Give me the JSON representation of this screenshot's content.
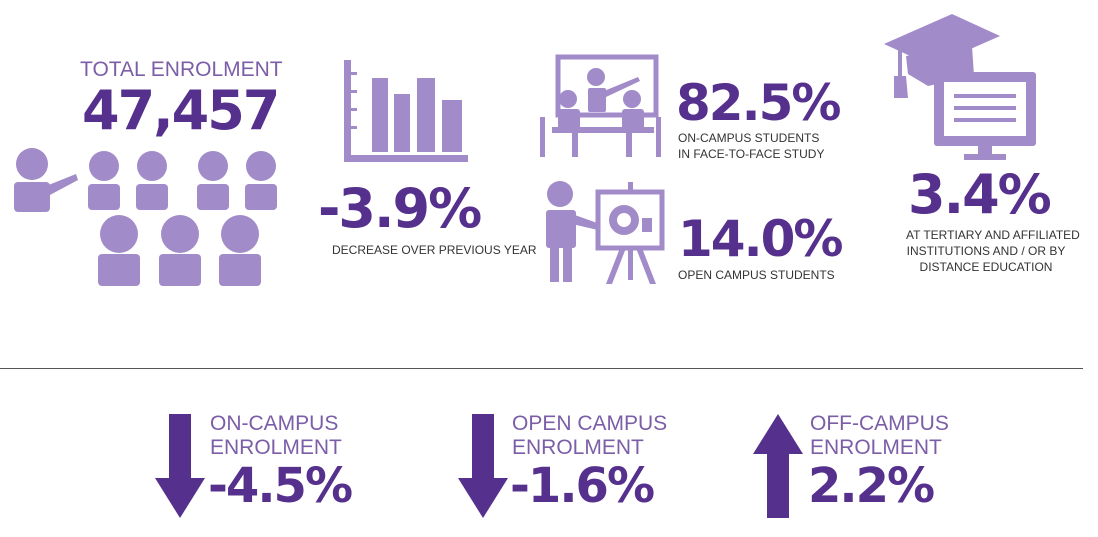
{
  "colors": {
    "dark": "#55308d",
    "mid": "#7b5ea7",
    "light": "#a18bc9",
    "rule": "#555555"
  },
  "total": {
    "label": "TOTAL ENROLMENT",
    "value": "47,457",
    "icon": "people-group-icon"
  },
  "decrease": {
    "value": "-3.9%",
    "caption": "DECREASE OVER PREVIOUS YEAR",
    "icon": "bar-chart-icon"
  },
  "on_campus": {
    "value": "82.5%",
    "caption_line1": "ON-CAMPUS STUDENTS",
    "caption_line2": "IN FACE-TO-FACE STUDY",
    "icon": "classroom-icon"
  },
  "open_campus": {
    "value": "14.0%",
    "caption": "OPEN CAMPUS STUDENTS",
    "icon": "presenter-icon"
  },
  "tertiary": {
    "value": "3.4%",
    "caption_line1": "AT TERTIARY AND AFFILIATED",
    "caption_line2": "INSTITUTIONS AND / OR BY",
    "caption_line3": "DISTANCE EDUCATION",
    "icon": "graduation-monitor-icon"
  },
  "changes": [
    {
      "line1": "ON-CAMPUS",
      "line2": "ENROLMENT",
      "value": "-4.5%",
      "direction": "down",
      "icon": "arrow-down-icon"
    },
    {
      "line1": "OPEN CAMPUS",
      "line2": "ENROLMENT",
      "value": "-1.6%",
      "direction": "down",
      "icon": "arrow-down-icon"
    },
    {
      "line1": "OFF-CAMPUS",
      "line2": "ENROLMENT",
      "value": "2.2%",
      "direction": "up",
      "icon": "arrow-up-icon"
    }
  ]
}
